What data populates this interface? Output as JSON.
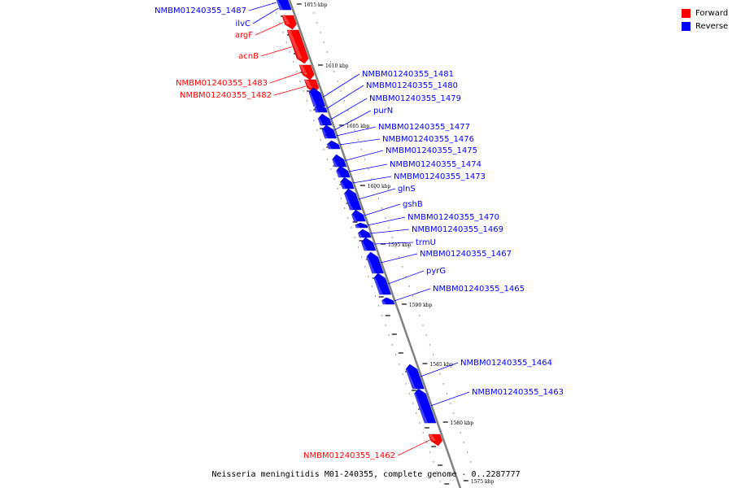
{
  "colors": {
    "forward": "#ff0000",
    "reverse": "#0000ff",
    "backbone": "#808080",
    "tick": "#000000",
    "dot": "#777777"
  },
  "legend": [
    {
      "label": "Forward",
      "color": "#ff0000"
    },
    {
      "label": "Reverse",
      "color": "#0000ff"
    }
  ],
  "footer": {
    "title": "Neisseria meningitidis M01-240355, complete genome",
    "range": "0..2287777"
  },
  "ticks": [
    "1615 kbp",
    "1610 kbp",
    "1605 kbp",
    "1600 kbp",
    "1595 kbp",
    "1590 kbp",
    "1585 kbp",
    "1580 kbp",
    "1575 kbp"
  ],
  "genes": [
    {
      "label": "NMBM01240355_1487",
      "strand": "reverse"
    },
    {
      "label": "ilvC",
      "strand": "reverse"
    },
    {
      "label": "argF",
      "strand": "forward"
    },
    {
      "label": "acnB",
      "strand": "forward"
    },
    {
      "label": "NMBM01240355_1483",
      "strand": "forward"
    },
    {
      "label": "NMBM01240355_1482",
      "strand": "forward"
    },
    {
      "label": "NMBM01240355_1481",
      "strand": "reverse"
    },
    {
      "label": "NMBM01240355_1480",
      "strand": "reverse"
    },
    {
      "label": "NMBM01240355_1479",
      "strand": "reverse"
    },
    {
      "label": "purN",
      "strand": "reverse"
    },
    {
      "label": "NMBM01240355_1477",
      "strand": "reverse"
    },
    {
      "label": "NMBM01240355_1476",
      "strand": "reverse"
    },
    {
      "label": "NMBM01240355_1475",
      "strand": "reverse"
    },
    {
      "label": "NMBM01240355_1474",
      "strand": "reverse"
    },
    {
      "label": "NMBM01240355_1473",
      "strand": "reverse"
    },
    {
      "label": "glnS",
      "strand": "reverse"
    },
    {
      "label": "gshB",
      "strand": "reverse"
    },
    {
      "label": "NMBM01240355_1470",
      "strand": "reverse"
    },
    {
      "label": "NMBM01240355_1469",
      "strand": "reverse"
    },
    {
      "label": "trmU",
      "strand": "reverse"
    },
    {
      "label": "NMBM01240355_1467",
      "strand": "reverse"
    },
    {
      "label": "pyrG",
      "strand": "reverse"
    },
    {
      "label": "NMBM01240355_1465",
      "strand": "reverse"
    },
    {
      "label": "NMBM01240355_1464",
      "strand": "reverse"
    },
    {
      "label": "NMBM01240355_1463",
      "strand": "reverse"
    },
    {
      "label": "NMBM01240355_1462",
      "strand": "forward"
    }
  ]
}
